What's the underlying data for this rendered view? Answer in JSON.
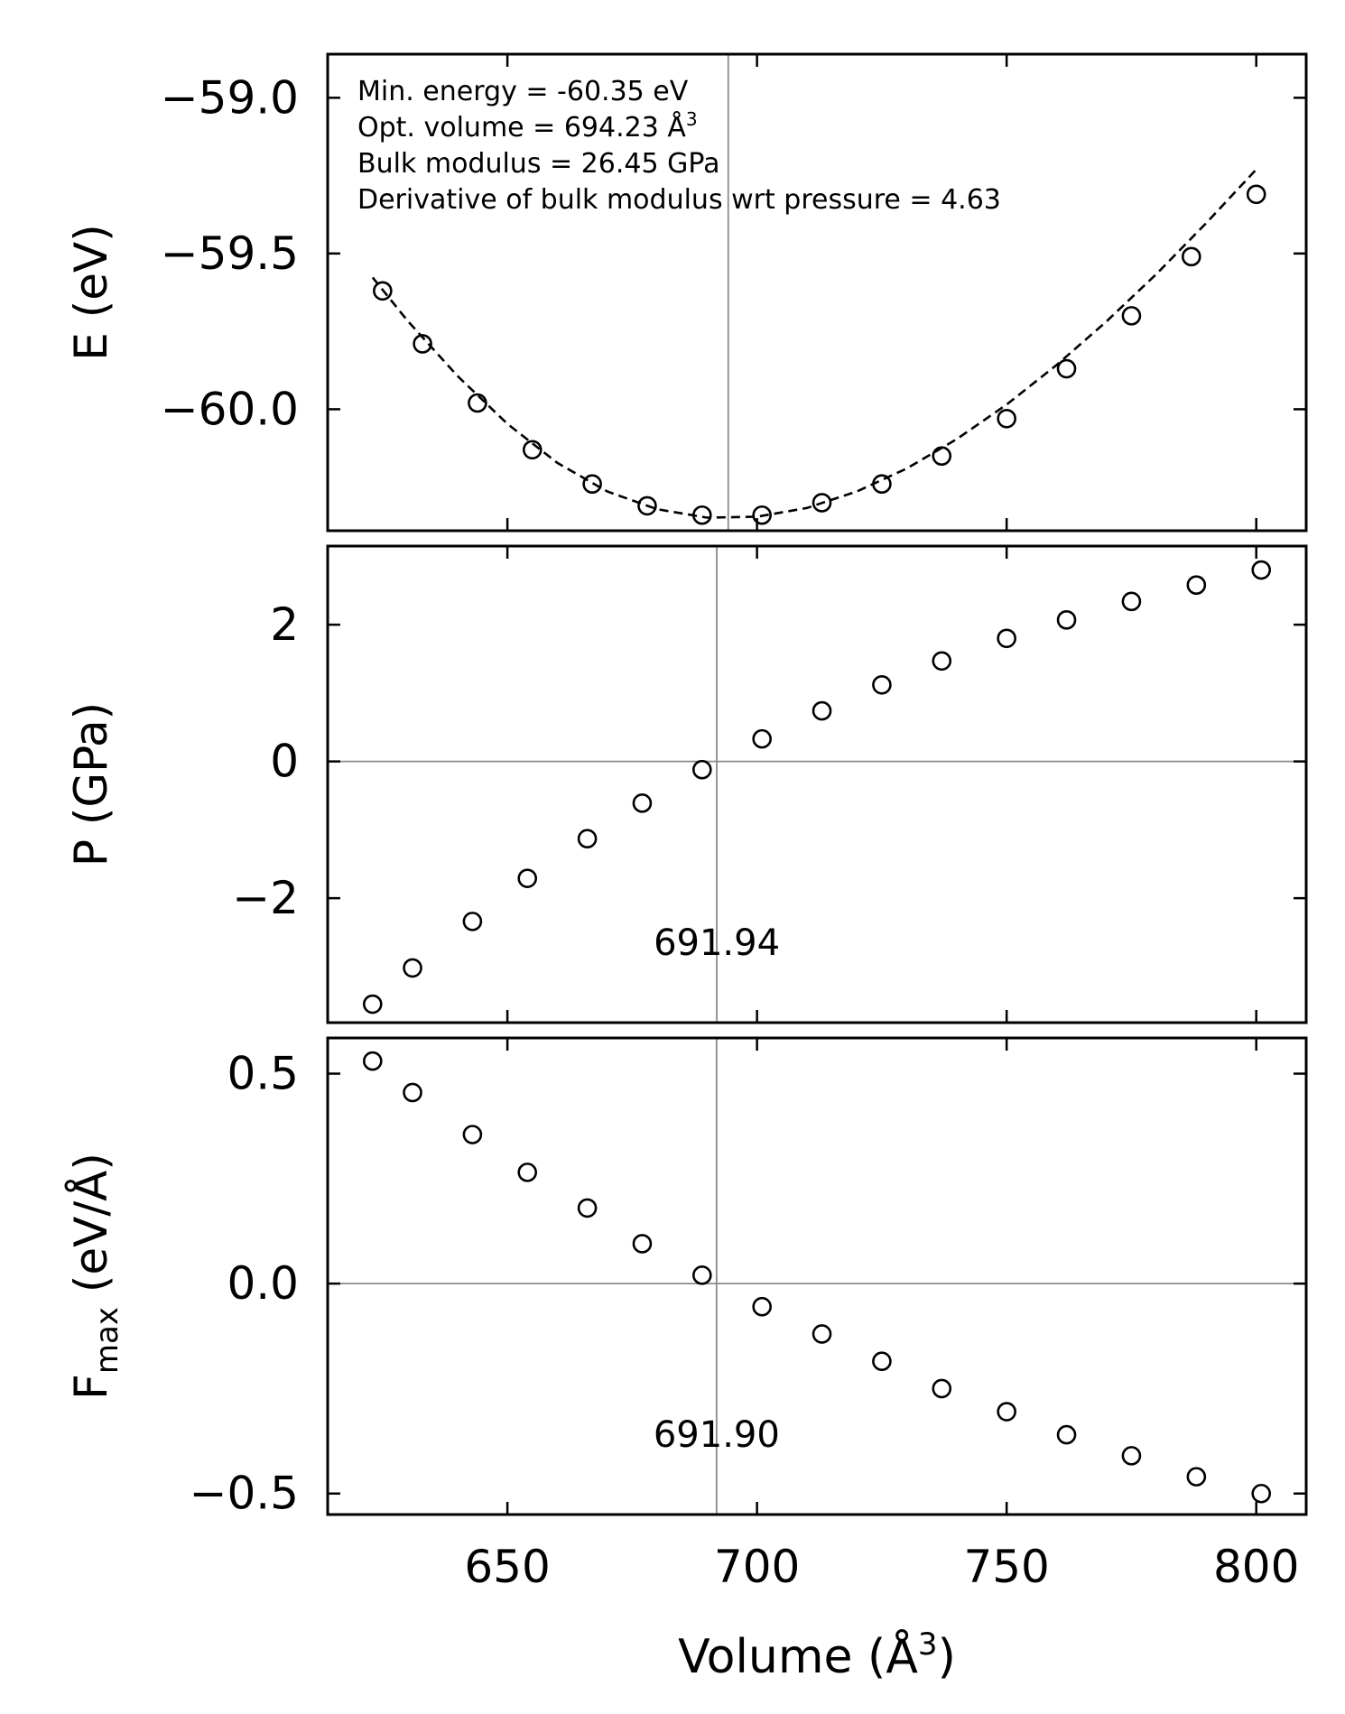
{
  "figure": {
    "xlabel_text": "Volume (Å",
    "xlabel_sup": "3",
    "xlabel_close": ")",
    "x_ticks": [
      650,
      700,
      750,
      800
    ],
    "x_tick_labels": [
      "650",
      "700",
      "750",
      "800"
    ],
    "xlim": [
      614,
      810
    ]
  },
  "chart_data": [
    {
      "type": "scatter",
      "panel": "energy",
      "ylabel": "E (eV)",
      "ylim": [
        -60.39,
        -58.86
      ],
      "y_ticks": [
        -59.0,
        -59.5,
        -60.0
      ],
      "y_tick_labels": [
        "−59.0",
        "−59.5",
        "−60.0"
      ],
      "annotations": [
        "Min. energy = -60.35 eV",
        "Opt. volume = 694.23 Å",
        "Bulk modulus = 26.45 GPa",
        "Derivative of bulk modulus wrt pressure = 4.63"
      ],
      "annotation_sup": "3",
      "vline_x": 694.23,
      "x": [
        625,
        633,
        644,
        655,
        667,
        678,
        689,
        701,
        713,
        725,
        737,
        750,
        762,
        775,
        787,
        800
      ],
      "y": [
        -59.62,
        -59.79,
        -59.98,
        -60.13,
        -60.24,
        -60.31,
        -60.34,
        -60.34,
        -60.3,
        -60.24,
        -60.15,
        -60.03,
        -59.87,
        -59.7,
        -59.51,
        -59.31
      ],
      "fit_line": {
        "style": "dashed",
        "x": [
          623,
          630,
          640,
          650,
          660,
          670,
          680,
          690,
          700,
          710,
          720,
          730,
          740,
          750,
          760,
          770,
          780,
          790,
          800
        ],
        "y": [
          -59.577,
          -59.716,
          -59.893,
          -60.047,
          -60.172,
          -60.264,
          -60.321,
          -60.348,
          -60.345,
          -60.317,
          -60.264,
          -60.19,
          -60.096,
          -59.985,
          -59.858,
          -59.718,
          -59.566,
          -59.402,
          -59.23
        ]
      }
    },
    {
      "type": "scatter",
      "panel": "pressure",
      "ylabel": "P (GPa)",
      "ylim": [
        -3.82,
        3.15
      ],
      "y_ticks": [
        2,
        0,
        -2
      ],
      "y_tick_labels": [
        "2",
        "0",
        "−2"
      ],
      "hline_y": 0,
      "vline_x": 691.94,
      "vline_label": "691.94",
      "x": [
        623,
        631,
        643,
        654,
        666,
        677,
        689,
        701,
        713,
        725,
        737,
        750,
        762,
        775,
        788,
        801
      ],
      "y": [
        -3.55,
        -3.02,
        -2.34,
        -1.71,
        -1.13,
        -0.61,
        -0.12,
        0.33,
        0.74,
        1.12,
        1.47,
        1.8,
        2.07,
        2.34,
        2.58,
        2.8
      ]
    },
    {
      "type": "scatter",
      "panel": "force",
      "ylabel": "F",
      "ylabel_sub": "max",
      "ylabel_rest": " (eV/Å)",
      "ylim": [
        -0.55,
        0.585
      ],
      "y_ticks": [
        0.5,
        0.0,
        -0.5
      ],
      "y_tick_labels": [
        "0.5",
        "0.0",
        "−0.5"
      ],
      "hline_y": 0,
      "vline_x": 691.9,
      "vline_label": "691.90",
      "x": [
        623,
        631,
        643,
        654,
        666,
        677,
        689,
        701,
        713,
        725,
        737,
        750,
        762,
        775,
        788,
        801
      ],
      "y": [
        0.53,
        0.455,
        0.355,
        0.265,
        0.18,
        0.095,
        0.02,
        -0.055,
        -0.12,
        -0.185,
        -0.25,
        -0.305,
        -0.36,
        -0.41,
        -0.46,
        -0.5
      ]
    }
  ]
}
